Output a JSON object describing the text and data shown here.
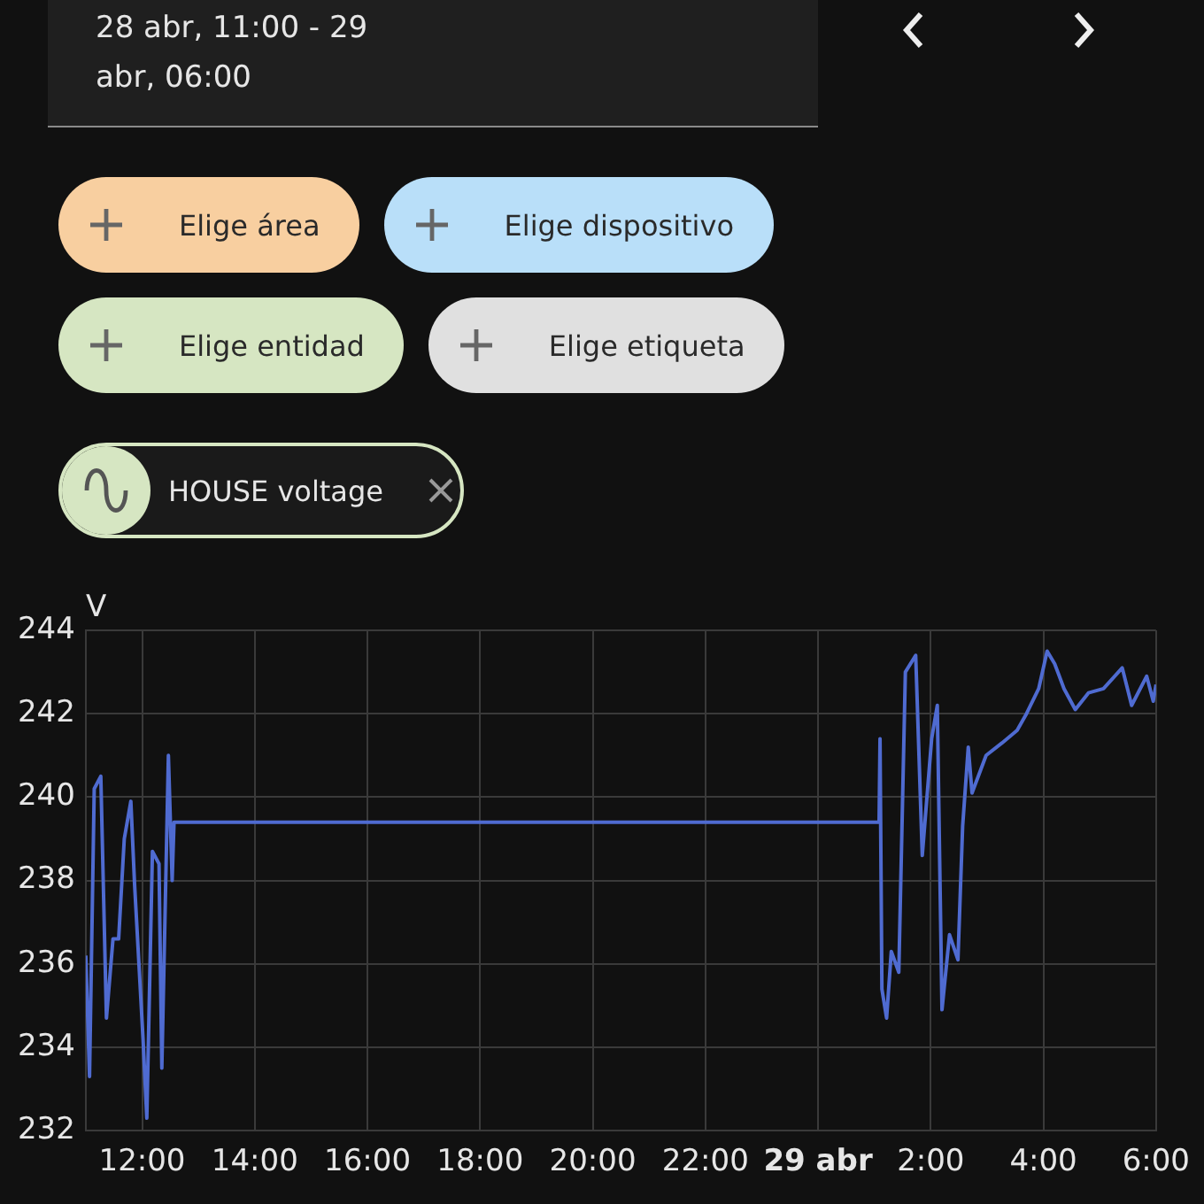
{
  "chart_data": {
    "type": "line",
    "title": "28 abr, 11:00 - 29 abr, 06:00",
    "ylabel": "V",
    "annotations": [
      "Elige área",
      "Elige dispositivo",
      "Elige entidad",
      "Elige etiqueta",
      "HOUSE voltage"
    ],
    "series": [
      {
        "color": "#4f6bd1",
        "x": [
          "--04-28T11:00",
          "--04-28T11:04",
          "--04-28T11:09",
          "--04-28T11:16",
          "--04-28T11:22",
          "--04-28T11:29",
          "--04-28T11:35",
          "--04-28T11:41",
          "--04-28T11:48",
          "--04-28T11:52",
          "--04-28T12:01",
          "--04-28T12:05",
          "--04-28T12:11",
          "--04-28T12:18",
          "--04-28T12:21",
          "--04-28T12:28",
          "--04-28T12:32",
          "--04-28T12:34",
          "--04-29T01:05",
          "--04-29T01:06",
          "--04-29T01:08",
          "--04-29T01:13",
          "--04-29T01:18",
          "--04-29T01:26",
          "--04-29T01:33",
          "--04-29T01:44",
          "--04-29T01:51",
          "--04-29T02:01",
          "--04-29T02:07",
          "--04-29T02:12",
          "--04-29T02:20",
          "--04-29T02:29",
          "--04-29T02:34",
          "--04-29T02:40",
          "--04-29T02:44",
          "--04-29T02:59",
          "--04-29T03:16",
          "--04-29T03:32",
          "--04-29T03:42",
          "--04-29T03:55",
          "--04-29T04:04",
          "--04-29T04:12",
          "--04-29T04:22",
          "--04-29T04:34",
          "--04-29T04:48",
          "--04-29T05:04",
          "--04-29T05:24",
          "--04-29T05:34",
          "--04-29T05:50",
          "--04-29T05:57",
          "--04-29T06:00"
        ],
        "values": [
          236.2,
          233.3,
          240.2,
          240.5,
          234.7,
          236.6,
          236.6,
          239.0,
          239.9,
          237.9,
          234.2,
          232.3,
          238.7,
          238.4,
          233.5,
          241.0,
          238.0,
          239.4,
          239.4,
          241.4,
          235.4,
          234.7,
          236.3,
          235.8,
          243.0,
          243.4,
          238.6,
          241.4,
          242.2,
          234.9,
          236.7,
          236.1,
          239.3,
          241.2,
          240.1,
          241.0,
          241.3,
          241.6,
          242.0,
          242.6,
          243.5,
          243.2,
          242.6,
          242.1,
          242.5,
          242.6,
          243.1,
          242.2,
          242.9,
          242.3,
          242.7
        ]
      }
    ],
    "xlim": [
      "--04-28T11:00",
      "--04-29T06:00"
    ],
    "xticks": [
      {
        "value": "--04-28T12:00",
        "label": "12:00"
      },
      {
        "value": "--04-28T14:00",
        "label": "14:00"
      },
      {
        "value": "--04-28T16:00",
        "label": "16:00"
      },
      {
        "value": "--04-28T18:00",
        "label": "18:00"
      },
      {
        "value": "--04-28T20:00",
        "label": "20:00"
      },
      {
        "value": "--04-28T22:00",
        "label": "22:00"
      },
      {
        "value": "--04-29T00:00",
        "label": "29 abr"
      },
      {
        "value": "--04-29T02:00",
        "label": "2:00"
      },
      {
        "value": "--04-29T04:00",
        "label": "4:00"
      },
      {
        "value": "--04-29T06:00",
        "label": "6:00"
      }
    ],
    "ylim": [
      232,
      244
    ],
    "yticks": [
      232,
      234,
      236,
      238,
      240,
      242,
      244
    ],
    "grid": true,
    "legend": false,
    "marker": "none",
    "line_style": "solid"
  }
}
